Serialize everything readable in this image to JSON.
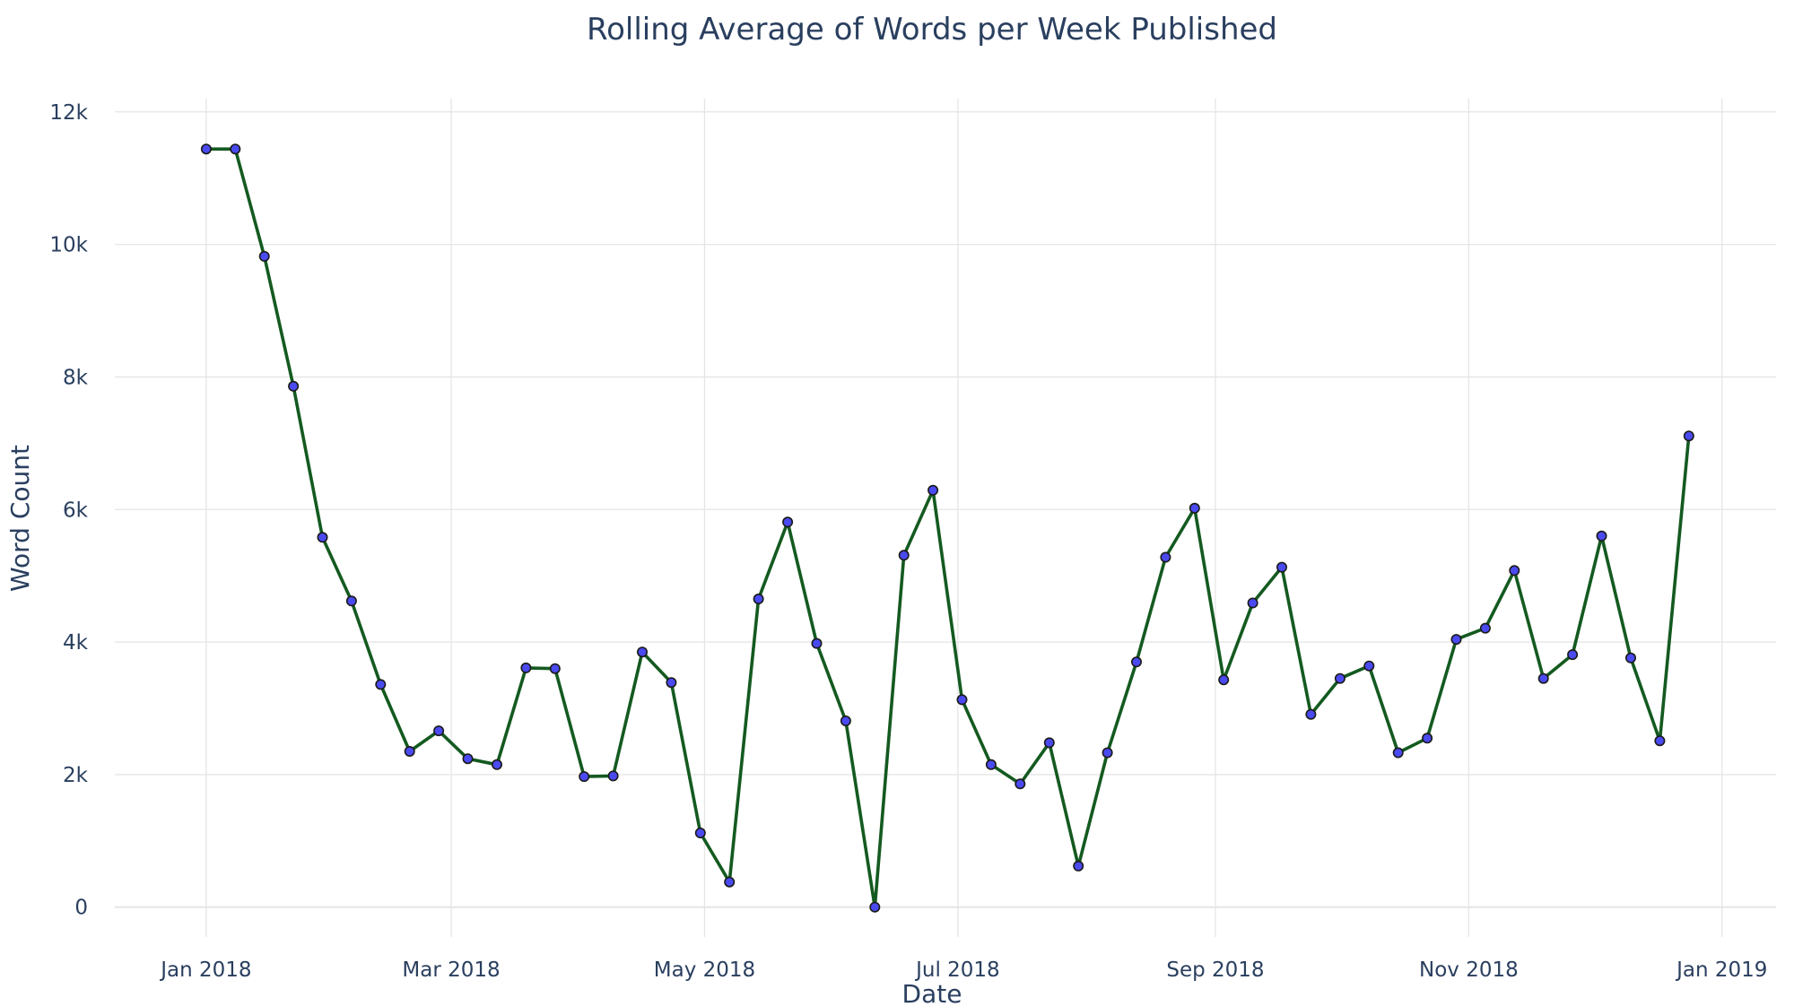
{
  "chart_data": {
    "type": "line",
    "title": "Rolling Average of Words per Week Published",
    "xlabel": "Date",
    "ylabel": "Word Count",
    "xlim": [
      "2017-12-10",
      "2019-01-14"
    ],
    "ylim": [
      -450,
      12200
    ],
    "grid": true,
    "legend": "none",
    "y_ticks": [
      {
        "value": 0,
        "label": "0"
      },
      {
        "value": 2000,
        "label": "2k"
      },
      {
        "value": 4000,
        "label": "4k"
      },
      {
        "value": 6000,
        "label": "6k"
      },
      {
        "value": 8000,
        "label": "8k"
      },
      {
        "value": 10000,
        "label": "10k"
      },
      {
        "value": 12000,
        "label": "12k"
      }
    ],
    "x_ticks": [
      {
        "value": "2018-01-01",
        "label": "Jan 2018"
      },
      {
        "value": "2018-03-01",
        "label": "Mar 2018"
      },
      {
        "value": "2018-05-01",
        "label": "May 2018"
      },
      {
        "value": "2018-07-01",
        "label": "Jul 2018"
      },
      {
        "value": "2018-09-01",
        "label": "Sep 2018"
      },
      {
        "value": "2018-11-01",
        "label": "Nov 2018"
      },
      {
        "value": "2019-01-01",
        "label": "Jan 2019"
      }
    ],
    "colors": {
      "line": "#145a20",
      "marker": "#4a4af0",
      "marker_outline": "#1a1a1a",
      "text": "#2a3f5f",
      "grid": "#e5e5e5"
    },
    "series": [
      {
        "x": [
          "2018-01-01",
          "2018-01-08",
          "2018-01-15",
          "2018-01-22",
          "2018-01-29",
          "2018-02-05",
          "2018-02-12",
          "2018-02-19",
          "2018-02-26",
          "2018-03-05",
          "2018-03-12",
          "2018-03-19",
          "2018-03-26",
          "2018-04-02",
          "2018-04-09",
          "2018-04-16",
          "2018-04-23",
          "2018-04-30",
          "2018-05-07",
          "2018-05-14",
          "2018-05-21",
          "2018-05-28",
          "2018-06-04",
          "2018-06-11",
          "2018-06-18",
          "2018-06-25",
          "2018-07-02",
          "2018-07-09",
          "2018-07-16",
          "2018-07-23",
          "2018-07-30",
          "2018-08-06",
          "2018-08-13",
          "2018-08-20",
          "2018-08-27",
          "2018-09-03",
          "2018-09-10",
          "2018-09-17",
          "2018-09-24",
          "2018-10-01",
          "2018-10-08",
          "2018-10-15",
          "2018-10-22",
          "2018-10-29",
          "2018-11-05",
          "2018-11-12",
          "2018-11-19",
          "2018-11-26",
          "2018-12-03",
          "2018-12-10",
          "2018-12-17",
          "2018-12-24"
        ],
        "values": [
          11440,
          11440,
          9820,
          7860,
          5580,
          4620,
          3360,
          2350,
          2660,
          2240,
          2150,
          3610,
          3600,
          1970,
          1980,
          3850,
          3390,
          1120,
          380,
          4650,
          5810,
          3980,
          2810,
          0,
          5310,
          6290,
          3130,
          2150,
          1860,
          2480,
          620,
          2330,
          3700,
          5280,
          6020,
          3430,
          4590,
          5130,
          2910,
          3450,
          3640,
          2330,
          2550,
          4040,
          4210,
          5080,
          3450,
          3810,
          5600,
          3760,
          2510,
          7110
        ]
      }
    ]
  }
}
